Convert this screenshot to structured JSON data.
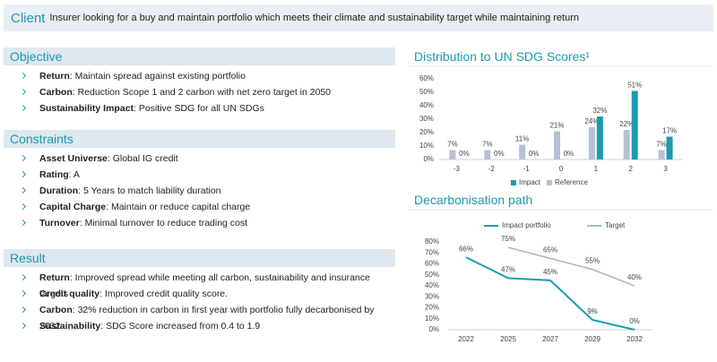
{
  "header": {
    "label": "Client",
    "text": "Insurer looking for a buy and maintain portfolio which meets their climate and sustainability target while maintaining return"
  },
  "sections": [
    {
      "title": "Objective",
      "items": [
        {
          "label": "Return",
          "text": ": Maintain spread against existing portfolio"
        },
        {
          "label": "Carbon",
          "text": ": Reduction Scope 1 and 2 carbon with net zero target in 2050"
        },
        {
          "label": "Sustainability Impact",
          "text": ": Positive SDG for all UN SDGs"
        }
      ]
    },
    {
      "title": "Constraints",
      "items": [
        {
          "label": "Asset Universe",
          "text": ": Global IG credit"
        },
        {
          "label": "Rating",
          "text": ": A"
        },
        {
          "label": "Duration",
          "text": ": 5 Years to match liability duration"
        },
        {
          "label": "Capital Charge",
          "text": ": Maintain or reduce capital charge"
        },
        {
          "label": "Turnover",
          "text": ": Minimal turnover to reduce trading cost"
        }
      ]
    },
    {
      "title": "Result",
      "items": [
        {
          "label": "Return",
          "text": ": Improved spread while meeting all carbon, sustainability and insurance targets"
        },
        {
          "label": "Credit quality",
          "text": ": Improved credit quality score."
        },
        {
          "label": "Carbon",
          "text": ":  32% reduction in carbon in first year with portfolio fully decarbonised by 2032"
        },
        {
          "label": "Sustainability",
          "text": ": SDG Score increased from 0.4 to 1.9"
        }
      ]
    }
  ],
  "chart_data": [
    {
      "type": "bar",
      "title": "Distribution to UN SDG Scores¹",
      "categories": [
        "-3",
        "-2",
        "-1",
        "0",
        "1",
        "2",
        "3"
      ],
      "series": [
        {
          "name": "Impact",
          "color": "#1a9bb0",
          "values": [
            0,
            0,
            0,
            0,
            32,
            51,
            17
          ],
          "value_labels": [
            "0%",
            "0%",
            "0%",
            "0%",
            "32%",
            "51%",
            "17%"
          ]
        },
        {
          "name": "Reference",
          "color": "#b4c2d3",
          "values": [
            7,
            7,
            11,
            21,
            24,
            22,
            7
          ],
          "value_labels": [
            "7%",
            "7%",
            "11%",
            "21%",
            "24%",
            "22%",
            "7%"
          ]
        }
      ],
      "ylim": [
        0,
        60
      ],
      "yticks": [
        {
          "value": 0,
          "label": "0%"
        },
        {
          "value": 10,
          "label": "10%"
        },
        {
          "value": 20,
          "label": "20%"
        },
        {
          "value": 30,
          "label": "30%"
        },
        {
          "value": 40,
          "label": "40%"
        },
        {
          "value": 50,
          "label": "50%"
        },
        {
          "value": 60,
          "label": "60%"
        }
      ]
    },
    {
      "type": "line",
      "title": "Decarbonisation path",
      "categories": [
        "2022",
        "2025",
        "2027",
        "2029",
        "2032"
      ],
      "series": [
        {
          "name": "Impact portfolio",
          "color": "#1a9bb0",
          "values": [
            66,
            47,
            45,
            9,
            0
          ],
          "value_labels": [
            "66%",
            "47%",
            "45%",
            "9%",
            "0%"
          ]
        },
        {
          "name": "Target",
          "color": "#a9b8c9",
          "values": [
            null,
            75,
            65,
            55,
            40
          ],
          "value_labels": [
            null,
            "75%",
            "65%",
            "55%",
            "40%"
          ]
        }
      ],
      "ylim": [
        0,
        80
      ],
      "yticks": [
        {
          "value": 0,
          "label": "0%"
        },
        {
          "value": 10,
          "label": "10%"
        },
        {
          "value": 20,
          "label": "20%"
        },
        {
          "value": 30,
          "label": "30%"
        },
        {
          "value": 40,
          "label": "40%"
        },
        {
          "value": 50,
          "label": "50%"
        },
        {
          "value": 60,
          "label": "60%"
        },
        {
          "value": 70,
          "label": "70%"
        },
        {
          "value": 80,
          "label": "80%"
        }
      ]
    }
  ]
}
